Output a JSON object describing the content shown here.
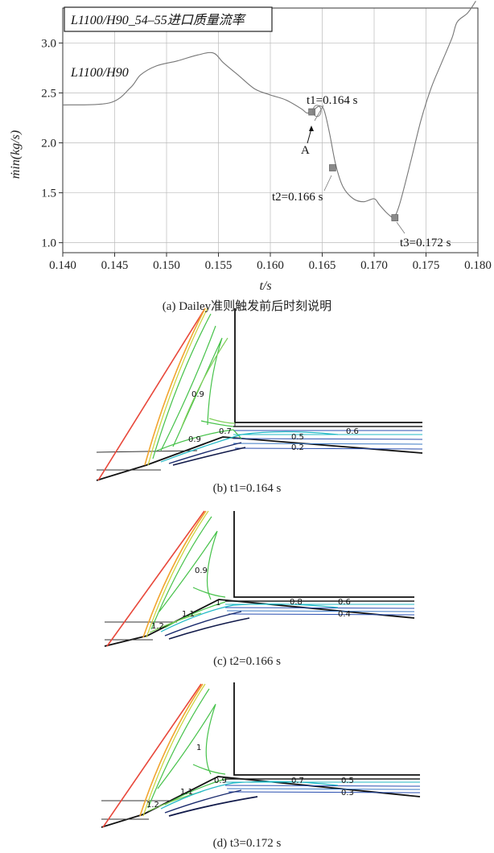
{
  "chart_data": {
    "type": "line",
    "title": "L1100/H90_54–55进口质量流率",
    "series_label": "L1100/H90",
    "xlabel": "t/s",
    "ylabel": "ṁin(kg/s)",
    "xlim": [
      0.14,
      0.18
    ],
    "ylim": [
      0.9,
      3.35
    ],
    "xticks": [
      "0.140",
      "0.145",
      "0.150",
      "0.155",
      "0.160",
      "0.165",
      "0.170",
      "0.175",
      "0.180"
    ],
    "yticks": [
      "1.0",
      "1.5",
      "2.0",
      "2.5",
      "3.0"
    ],
    "grid": true,
    "x": [
      0.14,
      0.1445,
      0.1465,
      0.1475,
      0.149,
      0.151,
      0.153,
      0.1545,
      0.1555,
      0.157,
      0.1585,
      0.16,
      0.1615,
      0.163,
      0.1635,
      0.164,
      0.1643,
      0.1648,
      0.1652,
      0.1657,
      0.1663,
      0.167,
      0.168,
      0.169,
      0.17,
      0.1705,
      0.1712,
      0.1718,
      0.172,
      0.1725,
      0.1735,
      0.1745,
      0.1755,
      0.1765,
      0.1775,
      0.178,
      0.179,
      0.1798
    ],
    "y": [
      2.38,
      2.4,
      2.55,
      2.68,
      2.77,
      2.82,
      2.88,
      2.9,
      2.8,
      2.67,
      2.54,
      2.48,
      2.43,
      2.34,
      2.3,
      2.31,
      2.34,
      2.37,
      2.32,
      2.1,
      1.78,
      1.56,
      1.44,
      1.41,
      1.44,
      1.38,
      1.3,
      1.25,
      1.26,
      1.4,
      1.8,
      2.22,
      2.55,
      2.8,
      3.05,
      3.21,
      3.3,
      3.42
    ],
    "markers": [
      {
        "x": 0.164,
        "y": 2.31,
        "label": "t1=0.164 s"
      },
      {
        "x": 0.166,
        "y": 1.75,
        "label": "t2=0.166 s"
      },
      {
        "x": 0.172,
        "y": 1.25,
        "label": "t3=0.172 s"
      }
    ],
    "point_label": "A"
  },
  "captions": {
    "a": "(a) Dailey准则触发前后时刻说明",
    "b": "(b) t1=0.164 s",
    "c": "(c) t2=0.166 s",
    "d": "(d) t3=0.172 s"
  },
  "contour_labels": {
    "b": [
      "0.9",
      "0.7",
      "0.9",
      "0.6",
      "0.5",
      "0.2"
    ],
    "c": [
      "0.9",
      "1",
      "1.1",
      "1.2",
      "0.8",
      "0.6",
      "0.4"
    ],
    "d": [
      "1",
      "0.9",
      "1.1",
      "1.2",
      "0.7",
      "0.5",
      "0.3"
    ]
  },
  "colors": {
    "curve": "#777777",
    "grid": "#bbbbbb",
    "marker": "#8a8a8a",
    "contour_red": "#e8473a",
    "contour_orange": "#f2a530",
    "contour_yellow": "#c9d33a",
    "contour_green": "#46c24a",
    "contour_cyan": "#22b9c6",
    "contour_blue": "#2a4fb0",
    "contour_navy": "#111a4a"
  }
}
